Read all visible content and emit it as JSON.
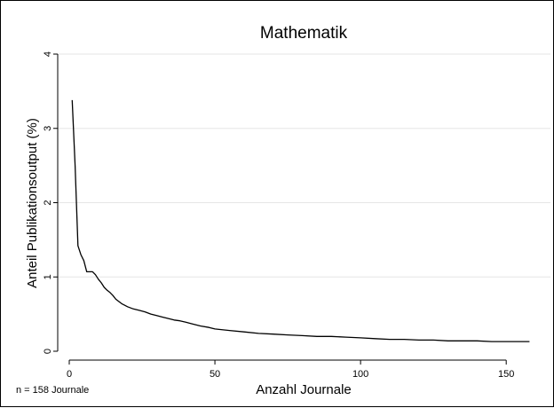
{
  "chart_data": {
    "type": "line",
    "title": "Mathematik",
    "xlabel": "Anzahl Journale",
    "ylabel": "Anteil Publikationsoutput (%)",
    "note": "n = 158 Journale",
    "xlim": [
      0,
      160
    ],
    "ylim": [
      0,
      4
    ],
    "xticks": [
      0,
      50,
      100,
      150
    ],
    "yticks": [
      0,
      1,
      2,
      3,
      4
    ],
    "grid": true,
    "legend": "none",
    "line_color": "#000000",
    "series": [
      {
        "x": [
          1,
          2,
          3,
          4,
          5,
          6,
          7,
          8,
          9,
          10,
          11,
          12,
          13,
          14,
          15,
          16,
          17,
          18,
          19,
          20,
          22,
          24,
          26,
          28,
          30,
          32,
          34,
          36,
          38,
          40,
          42,
          45,
          48,
          50,
          55,
          60,
          65,
          70,
          75,
          80,
          85,
          90,
          95,
          100,
          105,
          110,
          115,
          120,
          125,
          130,
          135,
          140,
          145,
          150,
          155,
          158
        ],
        "y": [
          3.38,
          2.5,
          1.42,
          1.3,
          1.22,
          1.07,
          1.07,
          1.07,
          1.03,
          0.97,
          0.92,
          0.86,
          0.82,
          0.79,
          0.75,
          0.7,
          0.67,
          0.64,
          0.62,
          0.6,
          0.57,
          0.55,
          0.53,
          0.5,
          0.48,
          0.46,
          0.44,
          0.42,
          0.41,
          0.39,
          0.37,
          0.34,
          0.32,
          0.3,
          0.28,
          0.26,
          0.24,
          0.23,
          0.22,
          0.21,
          0.2,
          0.2,
          0.19,
          0.18,
          0.17,
          0.16,
          0.16,
          0.15,
          0.15,
          0.14,
          0.14,
          0.14,
          0.13,
          0.13,
          0.13,
          0.13
        ]
      }
    ]
  }
}
